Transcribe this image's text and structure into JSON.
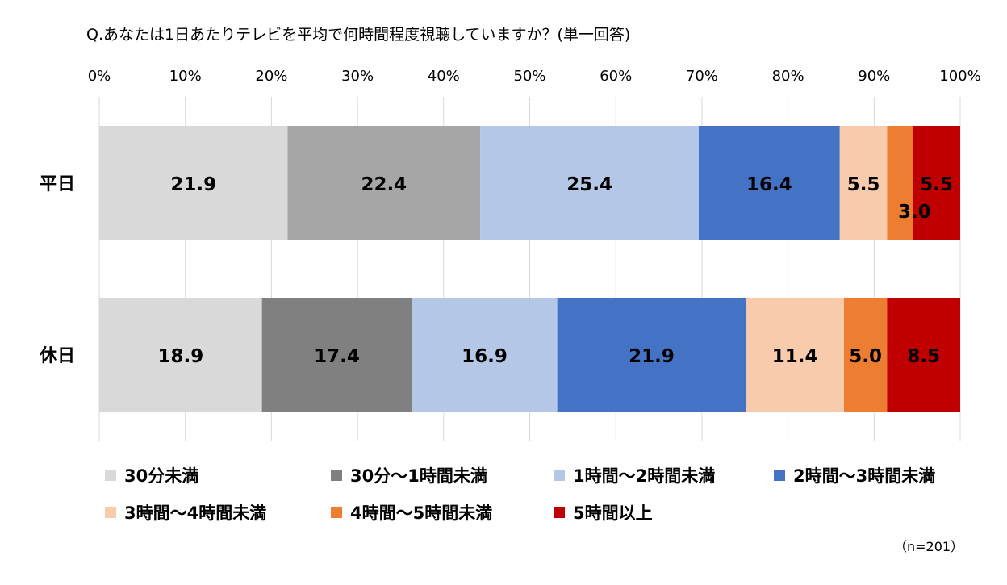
{
  "chart_data": {
    "type": "bar",
    "orientation": "horizontal",
    "stacked": true,
    "title": "Q.あなたは1日あたりテレビを平均で何時間程度視聴していますか？(単一回答)",
    "categories": [
      "平日",
      "休日"
    ],
    "x_ticks": [
      "0%",
      "10%",
      "20%",
      "30%",
      "40%",
      "50%",
      "60%",
      "70%",
      "80%",
      "90%",
      "100%"
    ],
    "xlim": [
      0,
      100
    ],
    "grid": true,
    "legend_position": "bottom",
    "series": [
      {
        "name": "30分未満",
        "color": "#d9d9d9",
        "values": [
          21.9,
          18.9
        ],
        "labels": [
          "21.9",
          "18.9"
        ]
      },
      {
        "name": "30分～1時間未満",
        "color": "#a6a6a6",
        "colors": [
          "#a6a6a6",
          "#808080"
        ],
        "values": [
          22.4,
          17.4
        ],
        "labels": [
          "22.4",
          "17.4"
        ]
      },
      {
        "name": "1時間～2時間未満",
        "color": "#b4c7e7",
        "values": [
          25.4,
          16.9
        ],
        "labels": [
          "25.4",
          "16.9"
        ]
      },
      {
        "name": "2時間～3時間未満",
        "color": "#4472c4",
        "values": [
          16.4,
          21.9
        ],
        "labels": [
          "16.4",
          "21.9"
        ]
      },
      {
        "name": "3時間～4時間未満",
        "color": "#f8cbad",
        "values": [
          5.5,
          11.4
        ],
        "labels": [
          "5.5",
          "11.4"
        ]
      },
      {
        "name": "4時間～5時間未満",
        "color": "#ed7d31",
        "values": [
          3.0,
          5.0
        ],
        "labels": [
          "3.0",
          "5.0"
        ]
      },
      {
        "name": "5時間以上",
        "color": "#c00000",
        "values": [
          5.5,
          8.5
        ],
        "labels": [
          "5.5",
          "8.5"
        ]
      }
    ],
    "note": "（n=201）"
  }
}
